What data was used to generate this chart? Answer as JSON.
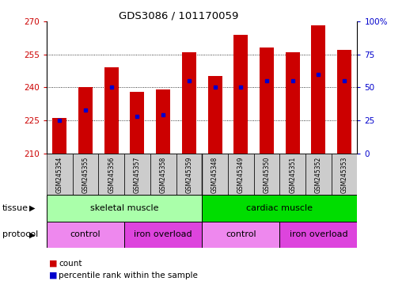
{
  "title": "GDS3086 / 101170059",
  "samples": [
    "GSM245354",
    "GSM245355",
    "GSM245356",
    "GSM245357",
    "GSM245358",
    "GSM245359",
    "GSM245348",
    "GSM245349",
    "GSM245350",
    "GSM245351",
    "GSM245352",
    "GSM245353"
  ],
  "bar_bottom": 210,
  "count_values": [
    226,
    240,
    249,
    238,
    239,
    256,
    245,
    264,
    258,
    256,
    268,
    257
  ],
  "percentile_values": [
    25,
    33,
    50,
    28,
    29,
    55,
    50,
    50,
    55,
    55,
    60,
    55
  ],
  "ylim_left": [
    210,
    270
  ],
  "ylim_right": [
    0,
    100
  ],
  "yticks_left": [
    210,
    225,
    240,
    255,
    270
  ],
  "yticks_right": [
    0,
    25,
    50,
    75,
    100
  ],
  "bar_color": "#cc0000",
  "percentile_color": "#0000cc",
  "bar_width": 0.55,
  "tissue_groups": [
    {
      "label": "skeletal muscle",
      "start": 0,
      "end": 6,
      "color": "#aaffaa"
    },
    {
      "label": "cardiac muscle",
      "start": 6,
      "end": 12,
      "color": "#00dd00"
    }
  ],
  "protocol_groups": [
    {
      "label": "control",
      "start": 0,
      "end": 3,
      "color": "#ee88ee"
    },
    {
      "label": "iron overload",
      "start": 3,
      "end": 6,
      "color": "#dd44dd"
    },
    {
      "label": "control",
      "start": 6,
      "end": 9,
      "color": "#ee88ee"
    },
    {
      "label": "iron overload",
      "start": 9,
      "end": 12,
      "color": "#dd44dd"
    }
  ],
  "tissue_label": "tissue",
  "protocol_label": "protocol",
  "legend_count_label": "count",
  "legend_percentile_label": "percentile rank within the sample",
  "bg_color": "#ffffff",
  "left_axis_color": "#cc0000",
  "right_axis_color": "#0000cc",
  "tick_label_bg": "#cccccc",
  "grid_yticks": [
    225,
    240,
    255
  ]
}
